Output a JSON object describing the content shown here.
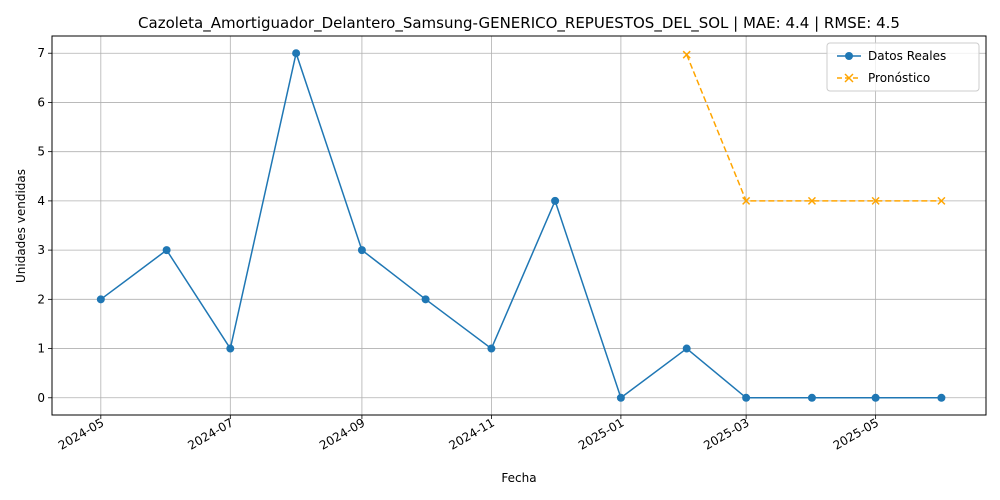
{
  "chart_data": {
    "type": "line",
    "title": "Cazoleta_Amortiguador_Delantero_Samsung-GENERICO_REPUESTOS_DEL_SOL | MAE: 4.4 | RMSE: 4.5",
    "xlabel": "Fecha",
    "ylabel": "Unidades vendidas",
    "xlim": [
      "2024-04-08",
      "2025-06-22"
    ],
    "ylim": [
      -0.35,
      7.35
    ],
    "xticks": [
      "2024-05",
      "2024-07",
      "2024-09",
      "2024-11",
      "2025-01",
      "2025-03",
      "2025-05"
    ],
    "yticks": [
      0,
      1,
      2,
      3,
      4,
      5,
      6,
      7
    ],
    "grid": true,
    "legend_position": "top-right",
    "series": [
      {
        "name": "Datos Reales",
        "color": "#1f77b4",
        "marker": "circle",
        "line_style": "solid",
        "x": [
          "2024-05-01",
          "2024-06-01",
          "2024-07-01",
          "2024-08-01",
          "2024-09-01",
          "2024-10-01",
          "2024-11-01",
          "2024-12-01",
          "2025-01-01",
          "2025-02-01",
          "2025-03-01",
          "2025-04-01",
          "2025-05-01",
          "2025-06-01"
        ],
        "values": [
          2,
          3,
          1,
          7,
          3,
          2,
          1,
          4,
          0,
          1,
          0,
          0,
          0,
          0
        ]
      },
      {
        "name": "Pronóstico",
        "color": "#ffa500",
        "marker": "x",
        "line_style": "dashed",
        "x": [
          "2025-02-01",
          "2025-03-01",
          "2025-04-01",
          "2025-05-01",
          "2025-06-01"
        ],
        "values": [
          6.97,
          4.0,
          4.0,
          4.0,
          4.0
        ]
      }
    ]
  }
}
